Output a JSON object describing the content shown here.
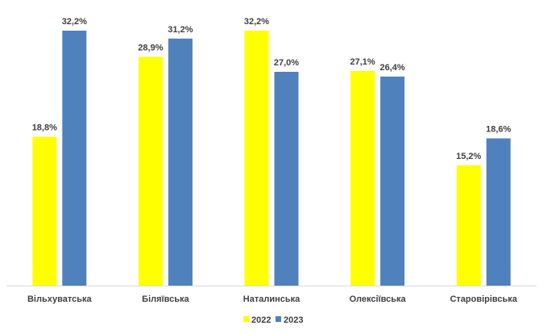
{
  "chart_data": {
    "type": "bar",
    "title": "",
    "xlabel": "",
    "ylabel": "",
    "ylim": [
      0,
      35
    ],
    "categories": [
      "Вільхуватська",
      "Біляївська",
      "Наталинська",
      "Олексіївська",
      "Старовірівська"
    ],
    "series": [
      {
        "name": "2022",
        "color": "#FFFF00",
        "values": [
          18.8,
          28.9,
          32.2,
          27.1,
          15.2
        ],
        "labels": [
          "18,8%",
          "28,9%",
          "32,2%",
          "27,1%",
          "15,2%"
        ]
      },
      {
        "name": "2023",
        "color": "#4F81BD",
        "values": [
          32.2,
          31.2,
          27.0,
          26.4,
          18.6
        ],
        "labels": [
          "32,2%",
          "31,2%",
          "27,0%",
          "26,4%",
          "18,6%"
        ]
      }
    ],
    "grid": false,
    "legend_position": "bottom"
  },
  "colors": {
    "axis": "#D9D9D9",
    "text": "#404040"
  }
}
